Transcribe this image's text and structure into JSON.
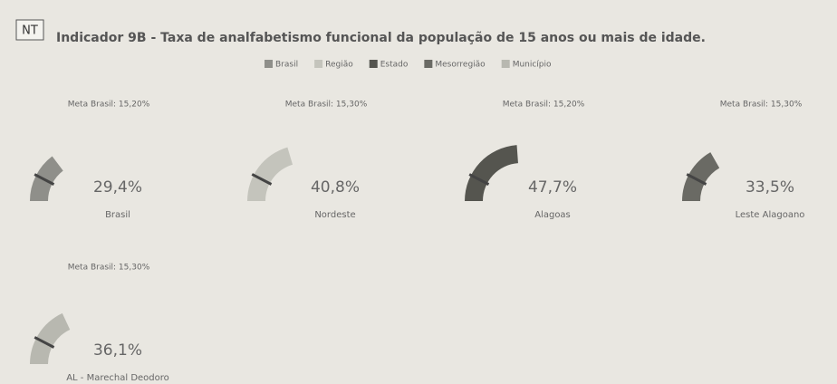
{
  "header": {
    "badge": "NT",
    "title": "Indicador 9B - Taxa de analfabetismo funcional da população de 15 anos ou mais de idade.",
    "legend": [
      {
        "name": "Brasil",
        "color": "#8f8f8a"
      },
      {
        "name": "Região",
        "color": "#c4c4bc"
      },
      {
        "name": "Estado",
        "color": "#55554f"
      },
      {
        "name": "Mesorregião",
        "color": "#6a6a64"
      },
      {
        "name": "Município",
        "color": "#b8b8b0"
      }
    ]
  },
  "chart_data": [
    {
      "type": "gauge",
      "subtitle": "Meta Brasil: 15,20%",
      "target": 15.2,
      "name": "Brasil",
      "values": [
        29.4
      ],
      "value_labels": [
        "29,4%"
      ],
      "color": "#8f8f8a",
      "ylim": [
        0,
        100
      ]
    },
    {
      "type": "gauge",
      "subtitle": "Meta Brasil: 15,30%",
      "target": 15.3,
      "name": "Nordeste",
      "values": [
        40.8
      ],
      "value_labels": [
        "40,8%"
      ],
      "color": "#c4c4bc",
      "ylim": [
        0,
        100
      ]
    },
    {
      "type": "gauge",
      "subtitle": "Meta Brasil: 15,20%",
      "target": 15.2,
      "name": "Alagoas",
      "values": [
        47.7
      ],
      "value_labels": [
        "47,7%"
      ],
      "color": "#55554f",
      "ylim": [
        0,
        100
      ]
    },
    {
      "type": "gauge",
      "subtitle": "Meta Brasil: 15,30%",
      "target": 15.3,
      "name": "Leste Alagoano",
      "values": [
        33.5
      ],
      "value_labels": [
        "33,5%"
      ],
      "color": "#6a6a64",
      "ylim": [
        0,
        100
      ]
    },
    {
      "type": "gauge",
      "subtitle": "Meta Brasil: 15,30%",
      "target": 15.3,
      "name": "AL - Marechal Deodoro",
      "values": [
        36.1
      ],
      "value_labels": [
        "36,1%"
      ],
      "color": "#b8b8b0",
      "ylim": [
        0,
        100
      ]
    }
  ]
}
